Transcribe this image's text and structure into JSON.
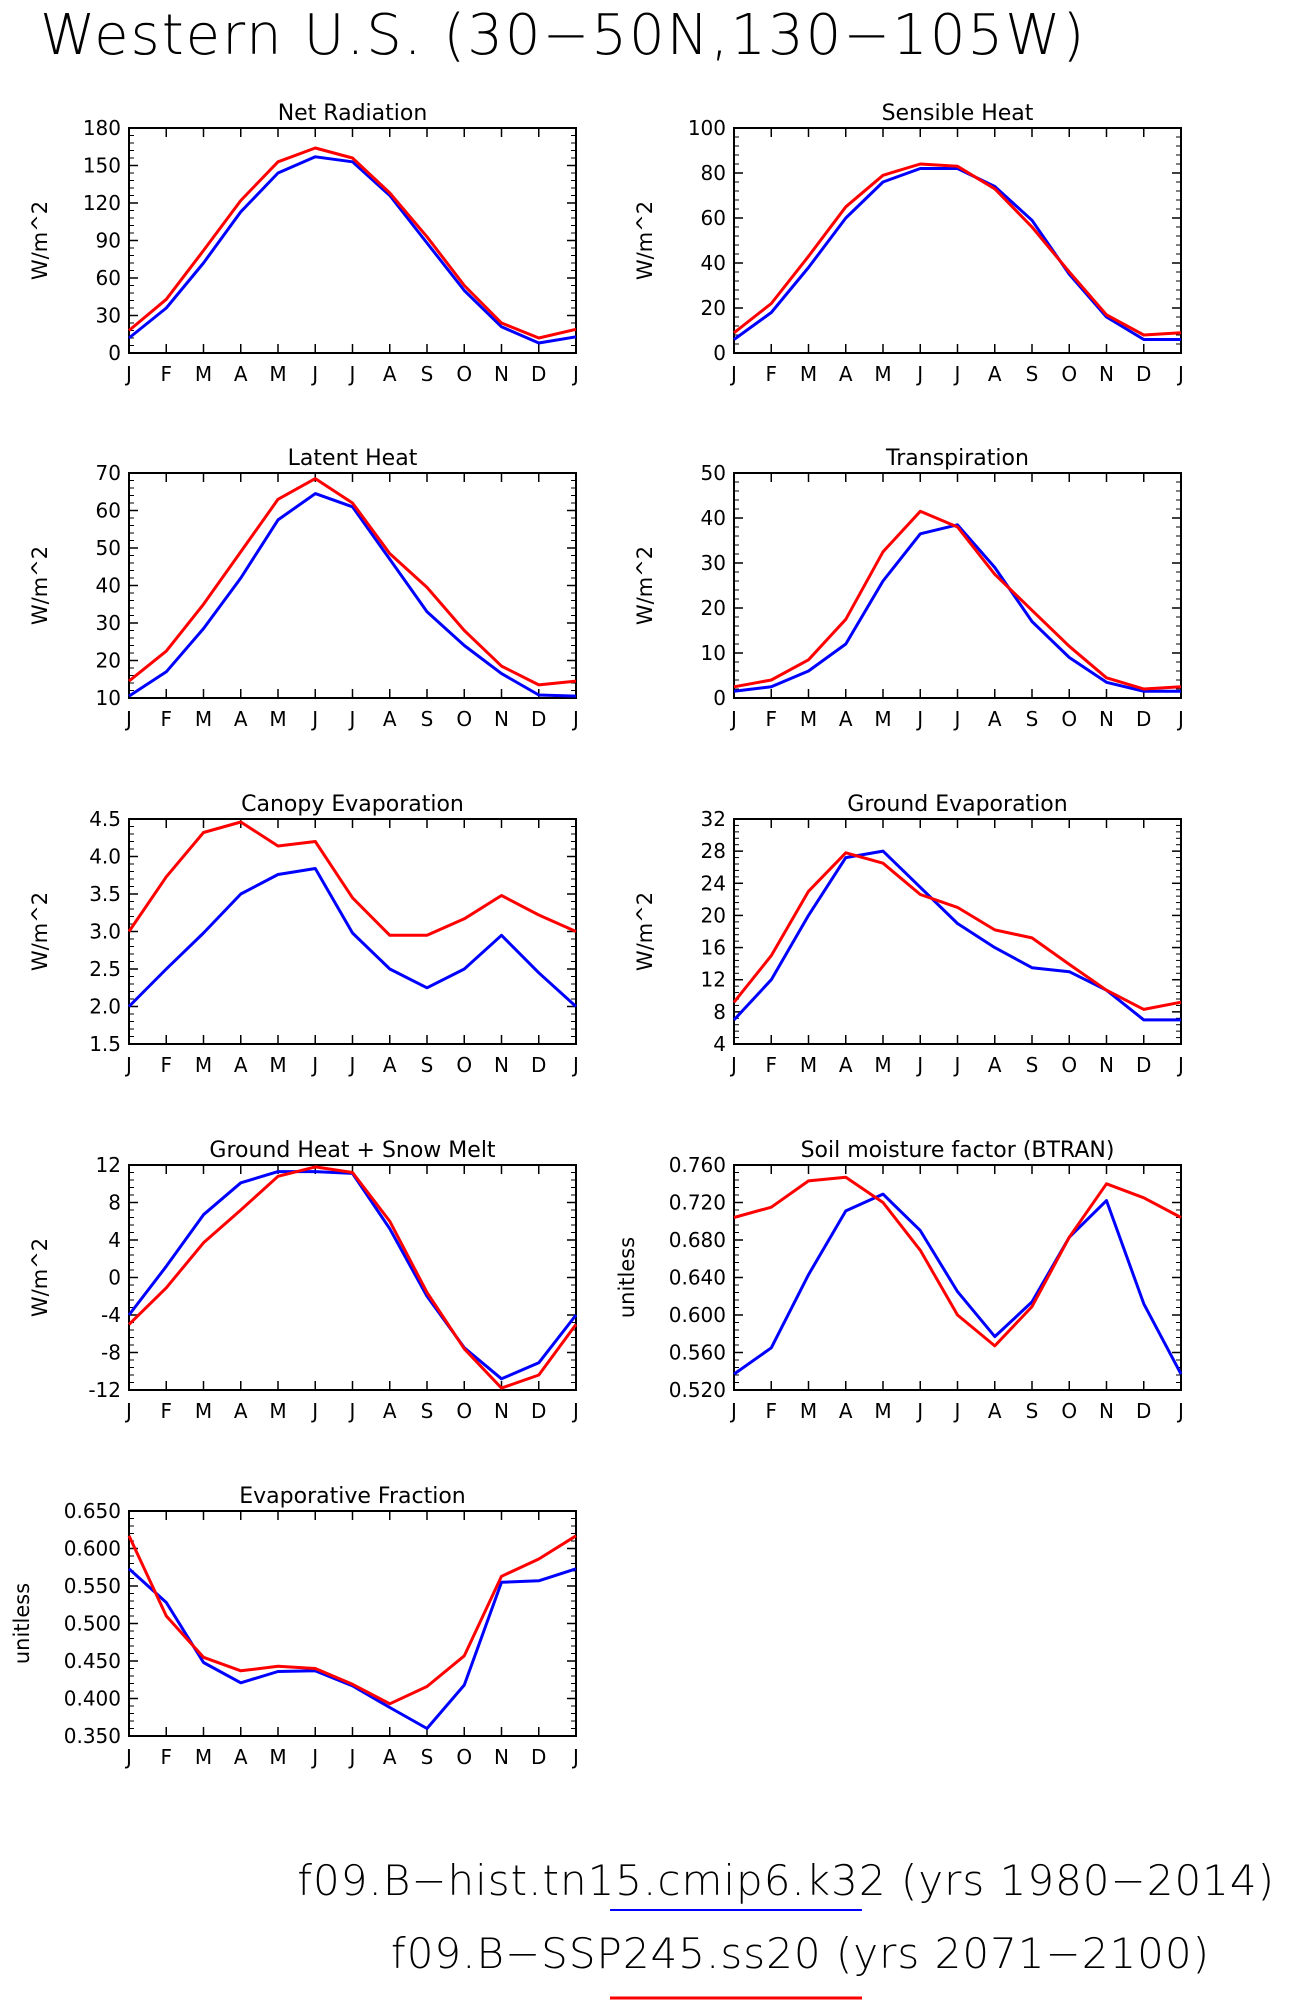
{
  "title": "Western U.S. (30−50N,130−105W)",
  "colors": {
    "hist": "#0000ff",
    "ssp": "#ff0000",
    "axis": "#000000"
  },
  "legend": [
    {
      "label": "f09.B−hist.tn15.cmip6.k32 (yrs 1980−2014)",
      "color": "#0000ff"
    },
    {
      "label": "f09.B−SSP245.ss20 (yrs 2071−2100)",
      "color": "#ff0000"
    }
  ],
  "chart_data": [
    {
      "type": "line",
      "title": "Net Radiation",
      "ylabel": "W/m^2",
      "categories": [
        "J",
        "F",
        "M",
        "A",
        "M",
        "J",
        "J",
        "A",
        "S",
        "O",
        "N",
        "D",
        "J"
      ],
      "ylim": [
        0,
        180
      ],
      "yticks": [
        "0",
        "30",
        "60",
        "90",
        "120",
        "150",
        "180"
      ],
      "series": [
        {
          "values": [
            12,
            36,
            72,
            113,
            144,
            157,
            153,
            126,
            88,
            50,
            21,
            8,
            13
          ]
        },
        {
          "values": [
            18,
            43,
            82,
            122,
            153,
            164,
            156,
            128,
            93,
            54,
            24,
            12,
            19
          ]
        }
      ]
    },
    {
      "type": "line",
      "title": "Sensible Heat",
      "ylabel": "W/m^2",
      "categories": [
        "J",
        "F",
        "M",
        "A",
        "M",
        "J",
        "J",
        "A",
        "S",
        "O",
        "N",
        "D",
        "J"
      ],
      "ylim": [
        0,
        100
      ],
      "yticks": [
        "0",
        "20",
        "40",
        "60",
        "80",
        "100"
      ],
      "series": [
        {
          "values": [
            6,
            18,
            38,
            60,
            76,
            82,
            82,
            74,
            59,
            35,
            16,
            6,
            6
          ]
        },
        {
          "values": [
            9,
            22,
            43,
            65,
            79,
            84,
            83,
            73,
            56,
            36,
            17,
            8,
            9
          ]
        }
      ]
    },
    {
      "type": "line",
      "title": "Latent Heat",
      "ylabel": "W/m^2",
      "categories": [
        "J",
        "F",
        "M",
        "A",
        "M",
        "J",
        "J",
        "A",
        "S",
        "O",
        "N",
        "D",
        "J"
      ],
      "ylim": [
        10,
        70
      ],
      "yticks": [
        "10",
        "20",
        "30",
        "40",
        "50",
        "60",
        "70"
      ],
      "series": [
        {
          "values": [
            10.5,
            17,
            28.5,
            42,
            57.5,
            64.5,
            61,
            47,
            33,
            24,
            16.5,
            10.8,
            10.5
          ]
        },
        {
          "values": [
            14.5,
            22.5,
            35,
            49,
            63,
            68.5,
            62,
            48.5,
            39.5,
            28,
            18.5,
            13.5,
            14.5
          ]
        }
      ]
    },
    {
      "type": "line",
      "title": "Transpiration",
      "ylabel": "W/m^2",
      "categories": [
        "J",
        "F",
        "M",
        "A",
        "M",
        "J",
        "J",
        "A",
        "S",
        "O",
        "N",
        "D",
        "J"
      ],
      "ylim": [
        0,
        50
      ],
      "yticks": [
        "0",
        "10",
        "20",
        "30",
        "40",
        "50"
      ],
      "series": [
        {
          "values": [
            1.5,
            2.5,
            6,
            12,
            26,
            36.5,
            38.5,
            29,
            17,
            9,
            3.5,
            1.5,
            1.5
          ]
        },
        {
          "values": [
            2.5,
            4,
            8.5,
            17.5,
            32.5,
            41.5,
            38,
            27.5,
            19.5,
            11.5,
            4.5,
            2,
            2.5
          ]
        }
      ]
    },
    {
      "type": "line",
      "title": "Canopy Evaporation",
      "ylabel": "W/m^2",
      "categories": [
        "J",
        "F",
        "M",
        "A",
        "M",
        "J",
        "J",
        "A",
        "S",
        "O",
        "N",
        "D",
        "J"
      ],
      "ylim": [
        1.5,
        4.5
      ],
      "yticks": [
        "1.5",
        "2.0",
        "2.5",
        "3.0",
        "3.5",
        "4.0",
        "4.5"
      ],
      "series": [
        {
          "values": [
            2.0,
            2.5,
            2.98,
            3.5,
            3.76,
            3.84,
            2.98,
            2.5,
            2.25,
            2.5,
            2.95,
            2.45,
            2.0
          ]
        },
        {
          "values": [
            3.0,
            3.73,
            4.32,
            4.46,
            4.14,
            4.2,
            3.45,
            2.95,
            2.95,
            3.17,
            3.48,
            3.22,
            3.0
          ]
        }
      ]
    },
    {
      "type": "line",
      "title": "Ground Evaporation",
      "ylabel": "W/m^2",
      "categories": [
        "J",
        "F",
        "M",
        "A",
        "M",
        "J",
        "J",
        "A",
        "S",
        "O",
        "N",
        "D",
        "J"
      ],
      "ylim": [
        4,
        32
      ],
      "yticks": [
        "4",
        "8",
        "12",
        "16",
        "20",
        "24",
        "28",
        "32"
      ],
      "series": [
        {
          "values": [
            7,
            12,
            20,
            27.2,
            28,
            23.5,
            19,
            16,
            13.5,
            13,
            10.7,
            7,
            7
          ]
        },
        {
          "values": [
            9.2,
            15,
            23,
            27.8,
            26.5,
            22.6,
            21,
            18.2,
            17.2,
            13.9,
            10.7,
            8.3,
            9.2
          ]
        }
      ]
    },
    {
      "type": "line",
      "title": "Ground Heat + Snow Melt",
      "ylabel": "W/m^2",
      "categories": [
        "J",
        "F",
        "M",
        "A",
        "M",
        "J",
        "J",
        "A",
        "S",
        "O",
        "N",
        "D",
        "J"
      ],
      "ylim": [
        -12,
        12
      ],
      "yticks": [
        "-12",
        "-8",
        "-4",
        "0",
        "4",
        "8",
        "12"
      ],
      "series": [
        {
          "values": [
            -4,
            1.2,
            6.7,
            10.1,
            11.3,
            11.3,
            11.1,
            5.2,
            -2,
            -7.5,
            -10.8,
            -9.1,
            -4
          ]
        },
        {
          "values": [
            -5,
            -1.1,
            3.7,
            7.2,
            10.8,
            11.8,
            11.2,
            6,
            -1.6,
            -7.6,
            -11.8,
            -10.4,
            -5
          ]
        }
      ]
    },
    {
      "type": "line",
      "title": "Soil moisture factor (BTRAN)",
      "ylabel": "unitless",
      "categories": [
        "J",
        "F",
        "M",
        "A",
        "M",
        "J",
        "J",
        "A",
        "S",
        "O",
        "N",
        "D",
        "J"
      ],
      "ylim": [
        0.52,
        0.76
      ],
      "yticks": [
        "0.520",
        "0.560",
        "0.600",
        "0.640",
        "0.680",
        "0.720",
        "0.760"
      ],
      "series": [
        {
          "values": [
            0.537,
            0.565,
            0.643,
            0.711,
            0.729,
            0.69,
            0.625,
            0.577,
            0.614,
            0.683,
            0.722,
            0.612,
            0.537
          ]
        },
        {
          "values": [
            0.704,
            0.715,
            0.743,
            0.747,
            0.72,
            0.669,
            0.6,
            0.567,
            0.609,
            0.683,
            0.74,
            0.725,
            0.704
          ]
        }
      ]
    },
    {
      "type": "line",
      "title": "Evaporative Fraction",
      "ylabel": "unitless",
      "categories": [
        "J",
        "F",
        "M",
        "A",
        "M",
        "J",
        "J",
        "A",
        "S",
        "O",
        "N",
        "D",
        "J"
      ],
      "ylim": [
        0.35,
        0.65
      ],
      "yticks": [
        "0.350",
        "0.400",
        "0.450",
        "0.500",
        "0.550",
        "0.600",
        "0.650"
      ],
      "series": [
        {
          "values": [
            0.573,
            0.528,
            0.448,
            0.421,
            0.436,
            0.437,
            0.417,
            0.388,
            0.36,
            0.418,
            0.555,
            0.557,
            0.573
          ]
        },
        {
          "values": [
            0.617,
            0.51,
            0.455,
            0.437,
            0.443,
            0.44,
            0.419,
            0.393,
            0.416,
            0.457,
            0.563,
            0.586,
            0.617
          ]
        }
      ]
    }
  ]
}
